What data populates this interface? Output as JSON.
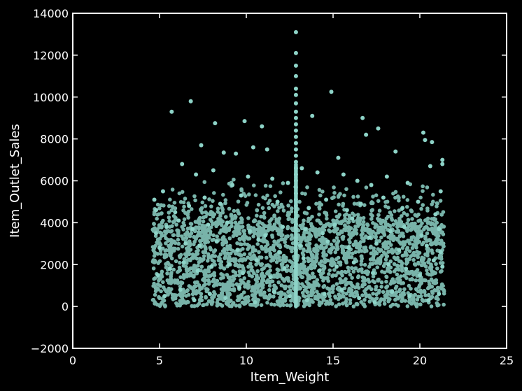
{
  "chart_data": {
    "type": "scatter",
    "xlabel": "Item_Weight",
    "ylabel": "Item_Outlet_Sales",
    "xlim": [
      0,
      25
    ],
    "ylim": [
      -2000,
      14000
    ],
    "xticks": [
      0,
      5,
      10,
      15,
      20,
      25
    ],
    "yticks": [
      -2000,
      0,
      2000,
      4000,
      6000,
      8000,
      10000,
      12000,
      14000
    ],
    "grid": false,
    "legend": "none",
    "colors": {
      "background": "#000000",
      "axes": "#ffffff",
      "point": "#8dd3c7"
    },
    "series": [
      {
        "x": [
          12.86,
          12.86,
          12.86,
          12.86,
          12.86,
          12.86,
          12.86,
          12.86,
          12.86,
          12.86,
          12.86,
          12.86,
          12.86,
          12.86,
          12.86,
          12.86,
          12.86,
          12.86,
          12.86,
          12.86,
          12.86,
          12.86,
          12.86,
          12.86,
          12.86,
          12.86,
          12.86,
          12.86,
          12.86,
          12.86,
          5.7,
          6.8,
          14.9,
          8.2,
          9.9,
          10.9,
          16.7,
          17.6,
          20.2,
          20.3,
          20.7,
          13.8,
          16.9,
          7.4,
          10.4,
          11.2,
          8.7,
          9.4,
          15.3,
          18.6,
          21.3,
          21.3,
          4.7,
          4.8,
          5.2,
          6.3,
          7.1,
          8.1,
          9.2,
          10.1,
          11.5,
          12.4,
          13.2,
          14.1,
          15.6,
          16.4,
          17.2,
          18.1,
          19.3,
          20.6,
          21.2,
          5.9,
          6.7,
          7.6,
          8.5,
          9.7,
          11.8,
          13.6,
          14.6,
          15.8,
          16.6,
          17.9,
          19.0,
          19.9,
          20.9,
          4.8,
          5.4,
          6.1,
          6.9,
          7.8,
          8.9,
          10.2,
          11.1,
          12.1,
          13.4,
          14.4,
          15.1,
          16.1,
          17.1,
          18.3,
          19.1,
          20.1,
          21.1,
          5.0,
          6.5,
          7.3,
          8.3,
          9.5,
          10.7,
          11.9,
          13.1,
          14.7,
          15.9,
          17.5,
          18.8,
          20.4,
          21.2,
          4.9,
          5.6,
          6.4,
          7.2,
          8.0,
          9.0,
          9.8,
          10.6,
          11.4,
          12.2,
          13.3,
          14.2,
          15.2,
          16.2,
          17.3,
          18.2,
          19.2,
          20.0,
          20.8,
          21.3,
          5.3,
          6.2,
          7.0,
          7.9,
          8.8,
          9.6,
          10.5,
          11.6,
          12.5,
          13.5,
          14.5,
          15.5,
          16.5,
          17.4,
          18.4,
          19.4,
          20.5,
          21.1
        ],
        "y": [
          13100,
          12100,
          11500,
          11000,
          10400,
          10100,
          9700,
          9300,
          9000,
          8700,
          8400,
          8100,
          7800,
          7500,
          7200,
          6900,
          6600,
          6300,
          6000,
          5700,
          5400,
          5100,
          4800,
          4500,
          4200,
          3900,
          3600,
          3300,
          3000,
          2700,
          9300,
          9800,
          10250,
          8750,
          8850,
          8600,
          9000,
          8500,
          8300,
          7950,
          7850,
          9100,
          8200,
          7700,
          7600,
          7500,
          7350,
          7300,
          7100,
          7400,
          7000,
          6800,
          5100,
          4600,
          5500,
          6800,
          6300,
          6500,
          5800,
          6200,
          6100,
          5900,
          6600,
          6400,
          6300,
          6000,
          5800,
          6200,
          5900,
          6700,
          5500,
          4500,
          4800,
          5200,
          4900,
          5300,
          5000,
          4700,
          5100,
          4600,
          4900,
          5200,
          4700,
          5000,
          4400,
          3500,
          3800,
          4100,
          3700,
          3900,
          4000,
          3600,
          3400,
          3800,
          3700,
          3500,
          3900,
          4200,
          3300,
          3600,
          3800,
          3400,
          3700,
          2800,
          3000,
          2900,
          3100,
          2700,
          3200,
          2600,
          2900,
          3100,
          2800,
          3000,
          2700,
          2900,
          2600,
          1500,
          1800,
          2100,
          1700,
          1900,
          2000,
          1600,
          2200,
          1400,
          1800,
          2300,
          1700,
          1900,
          2100,
          1600,
          2000,
          1800,
          1500,
          2200,
          1900,
          500,
          800,
          300,
          600,
          400,
          900,
          200,
          700,
          500,
          300,
          600,
          800,
          400,
          200,
          700,
          500,
          300,
          600
        ]
      }
    ]
  }
}
